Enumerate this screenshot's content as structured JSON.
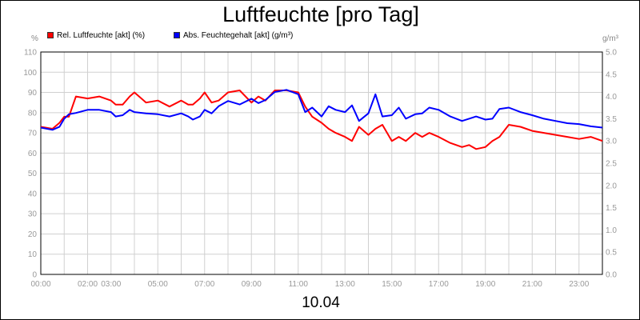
{
  "chart_data": {
    "type": "line",
    "title": "Luftfeuchte [pro Tag]",
    "xlabel": "10.04",
    "x_tick_labels": [
      "00:00",
      "02:00",
      "03:00",
      "05:00",
      "07:00",
      "09:00",
      "11:00",
      "13:00",
      "15:00",
      "17:00",
      "19:00",
      "21:00",
      "23:00"
    ],
    "x_tick_hours": [
      0,
      2,
      3,
      5,
      7,
      9,
      11,
      13,
      15,
      17,
      19,
      21,
      23
    ],
    "xlim": [
      0,
      24
    ],
    "grid": true,
    "legend_position": "top-left",
    "y_left": {
      "unit": "%",
      "ylim": [
        0,
        110
      ],
      "ticks": [
        "0",
        "10",
        "20",
        "30",
        "40",
        "50",
        "60",
        "70",
        "80",
        "90",
        "100",
        "110"
      ]
    },
    "y_right": {
      "unit": "g/m³",
      "ylim": [
        0,
        5
      ],
      "ticks": [
        "0.0",
        "0.5",
        "1.0",
        "1.5",
        "2.0",
        "2.5",
        "3.0",
        "3.5",
        "4.0",
        "4.5",
        "5.0"
      ]
    },
    "series": [
      {
        "name": "Rel. Luftfeuchte [akt] (%)",
        "axis": "left",
        "color": "#ff0000",
        "x": [
          0,
          0.5,
          0.8,
          1.0,
          1.2,
          1.5,
          2.0,
          2.5,
          3.0,
          3.2,
          3.5,
          3.8,
          4.0,
          4.5,
          5.0,
          5.5,
          6.0,
          6.3,
          6.5,
          6.8,
          7.0,
          7.3,
          7.6,
          8.0,
          8.5,
          9.0,
          9.3,
          9.6,
          10.0,
          10.5,
          11.0,
          11.3,
          11.6,
          12.0,
          12.3,
          12.6,
          13.0,
          13.3,
          13.6,
          14.0,
          14.3,
          14.6,
          15.0,
          15.3,
          15.6,
          16.0,
          16.3,
          16.6,
          17.0,
          17.5,
          18.0,
          18.3,
          18.6,
          19.0,
          19.3,
          19.6,
          20.0,
          20.5,
          21.0,
          21.5,
          22.0,
          22.5,
          23.0,
          23.5,
          24.0
        ],
        "values": [
          73,
          72,
          75,
          78,
          78,
          88,
          87,
          88,
          86,
          84,
          84,
          88,
          90,
          85,
          86,
          83,
          86,
          84,
          84,
          87,
          90,
          85,
          86,
          90,
          91,
          85,
          88,
          86,
          91,
          91,
          90,
          83,
          78,
          75,
          72,
          70,
          68,
          66,
          73,
          69,
          72,
          74,
          66,
          68,
          66,
          70,
          68,
          70,
          68,
          65,
          63,
          64,
          62,
          63,
          66,
          68,
          74,
          73,
          71,
          70,
          69,
          68,
          67,
          68,
          66
        ]
      },
      {
        "name": "Abs. Feuchtegehalt [akt] (g/m³)",
        "axis": "right",
        "color": "#0000ff",
        "x": [
          0,
          0.5,
          0.8,
          1.0,
          1.2,
          1.5,
          2.0,
          2.5,
          3.0,
          3.2,
          3.5,
          3.8,
          4.0,
          4.5,
          5.0,
          5.5,
          6.0,
          6.3,
          6.5,
          6.8,
          7.0,
          7.3,
          7.6,
          8.0,
          8.5,
          9.0,
          9.3,
          9.6,
          10.0,
          10.5,
          11.0,
          11.3,
          11.6,
          12.0,
          12.3,
          12.6,
          13.0,
          13.3,
          13.6,
          14.0,
          14.3,
          14.6,
          15.0,
          15.3,
          15.6,
          16.0,
          16.3,
          16.6,
          17.0,
          17.5,
          18.0,
          18.3,
          18.6,
          19.0,
          19.3,
          19.6,
          20.0,
          20.5,
          21.0,
          21.5,
          22.0,
          22.5,
          23.0,
          23.5,
          24.0
        ],
        "values": [
          3.3,
          3.25,
          3.32,
          3.5,
          3.6,
          3.63,
          3.7,
          3.7,
          3.65,
          3.55,
          3.58,
          3.7,
          3.65,
          3.62,
          3.6,
          3.55,
          3.62,
          3.55,
          3.48,
          3.55,
          3.7,
          3.62,
          3.78,
          3.9,
          3.82,
          3.95,
          3.85,
          3.92,
          4.1,
          4.15,
          4.05,
          3.65,
          3.75,
          3.55,
          3.78,
          3.7,
          3.65,
          3.8,
          3.45,
          3.62,
          4.05,
          3.55,
          3.58,
          3.75,
          3.5,
          3.6,
          3.62,
          3.75,
          3.7,
          3.55,
          3.45,
          3.5,
          3.55,
          3.48,
          3.5,
          3.72,
          3.75,
          3.65,
          3.58,
          3.5,
          3.45,
          3.4,
          3.38,
          3.33,
          3.3
        ]
      }
    ]
  }
}
